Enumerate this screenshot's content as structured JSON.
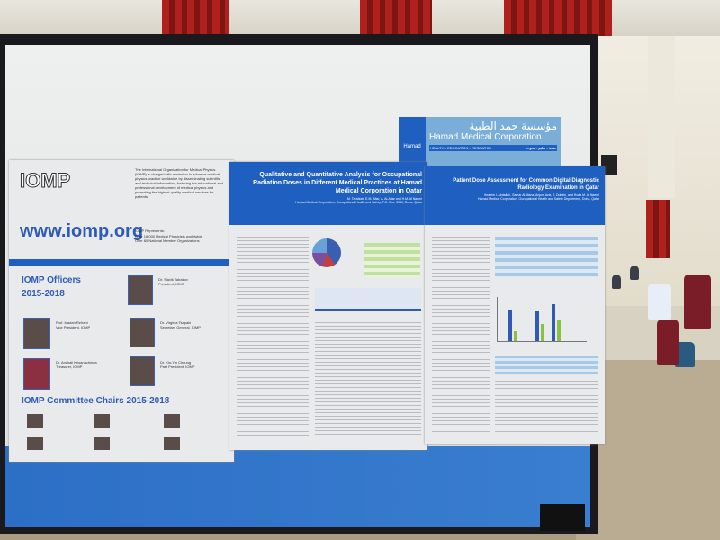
{
  "iomp_poster": {
    "logo": "IOMP",
    "website": "www.iomp.org",
    "intro": "The International Organization for Medical Physics (IOMP) is charged with a mission to advance medical physics practice worldwide by disseminating scientific and technical information, fostering the educational and professional development of medical physics and promoting the highest quality medical services for patients.",
    "represents_title": "IOMP Represents:",
    "represents": [
      "Over 18,000 Medical Physicists worldwide",
      "Over 80 National Member Organizations"
    ],
    "officers_title": "IOMP Officers",
    "officers_years": "2015-2018",
    "officers": [
      {
        "name": "Dr. Slavik Tabakov",
        "role": "President, IOMP"
      },
      {
        "name": "Prof. Madan Rehani",
        "role": "Vice President, IOMP"
      },
      {
        "name": "Dr. Virginia Tsapaki",
        "role": "Secretary General, IOMP"
      },
      {
        "name": "Dr. Anchali Krisanachinda",
        "role": "Treasurer, IOMP"
      },
      {
        "name": "Dr. Kin-Yin Cheung",
        "role": "Past President, IOMP"
      }
    ],
    "chairs_title": "IOMP Committee Chairs 2015-2018"
  },
  "hamad_logo": {
    "arabic": "مؤسسة حمد الطبية",
    "english": "Hamad Medical Corporation",
    "short": "Hamad",
    "tagline": "HEALTH • EDUCATION • RESEARCH",
    "tagline_arabic": "صحة • تعليم • بحوث"
  },
  "poster_occupational": {
    "title": "Qualitative and Quantitative Analysis for Occupational Radiation Doses in Different Medical Practices at Hamad Medical Corporation in Qatar",
    "authors": "M. Tarabiah, E.M. Attar, A. Al-Attar and H.M. Al Naemi",
    "affiliation": "Hamad Medical Corporation, Occupational Health and Safety, P.O. Box, 3050, Doha, Qatar"
  },
  "poster_patient_dose": {
    "title": "Patient Dose Assessment for Common Digital Diagnostic Radiology Examination in Qatar",
    "authors": "Ibrahim I. Abdallah, Samar Al-Mana, Anjum Aziz, J. Dubain, and Huda M. Al Naemi",
    "affiliation": "Hamad Medical Corporation, Occupational Health and Safety Department, Doha, Qatar"
  },
  "colors": {
    "poster_blue": "#1e5fbf",
    "curtain_red": "#b0201c",
    "board_frame": "#1a1a1e"
  }
}
